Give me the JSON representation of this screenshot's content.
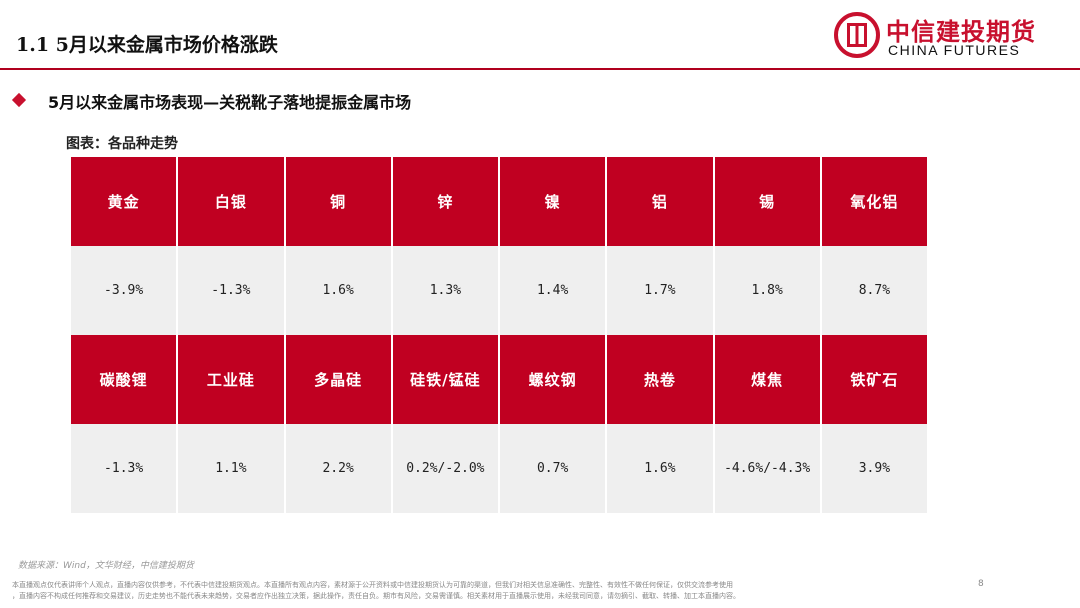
{
  "header": {
    "title": "1.1 5月以来金属市场价格涨跌",
    "logo_cn": "中信建投期货",
    "logo_en": "CHINA FUTURES"
  },
  "subheading": "5月以来金属市场表现—关税靴子落地提振金属市场",
  "caption": "图表：各品种走势",
  "table": {
    "row1": {
      "names": [
        "黄金",
        "白银",
        "铜",
        "锌",
        "镍",
        "铝",
        "锡",
        "氧化铝"
      ],
      "values": [
        "-3.9%",
        "-1.3%",
        "1.6%",
        "1.3%",
        "1.4%",
        "1.7%",
        "1.8%",
        "8.7%"
      ]
    },
    "row2": {
      "names": [
        "碳酸锂",
        "工业硅",
        "多晶硅",
        "硅铁/锰硅",
        "螺纹钢",
        "热卷",
        "煤焦",
        "铁矿石"
      ],
      "values": [
        "-1.3%",
        "1.1%",
        "2.2%",
        "0.2%/-2.0%",
        "0.7%",
        "1.6%",
        "-4.6%/-4.3%",
        "3.9%"
      ]
    }
  },
  "footer": {
    "source": "数据来源：Wind，文华财经，中信建投期货",
    "disclaimer_line1": "本直播观点仅代表讲师个人观点，直播内容仅供参考，不代表中信建投期货观点。本直播所有观点内容，素材源于公开资料或中信建投期货认为可靠的渠道，但我们对相关信息准确性、完整性、有效性不做任何保证，仅供交流参考使用",
    "disclaimer_line2": "，直播内容不构成任何推荐和交易建议，历史走势也不能代表未来趋势，交易者应作出独立决策，据此操作，责任自负。期市有风险，交易需谨慎。相关素材用于直播展示使用，未经我司同意，请勿摘引、截取、转播、加工本直播内容。",
    "page_number": "8"
  },
  "colors": {
    "brand_red": "#c8102e",
    "header_cell": "#c00021",
    "value_cell": "#efefef"
  }
}
